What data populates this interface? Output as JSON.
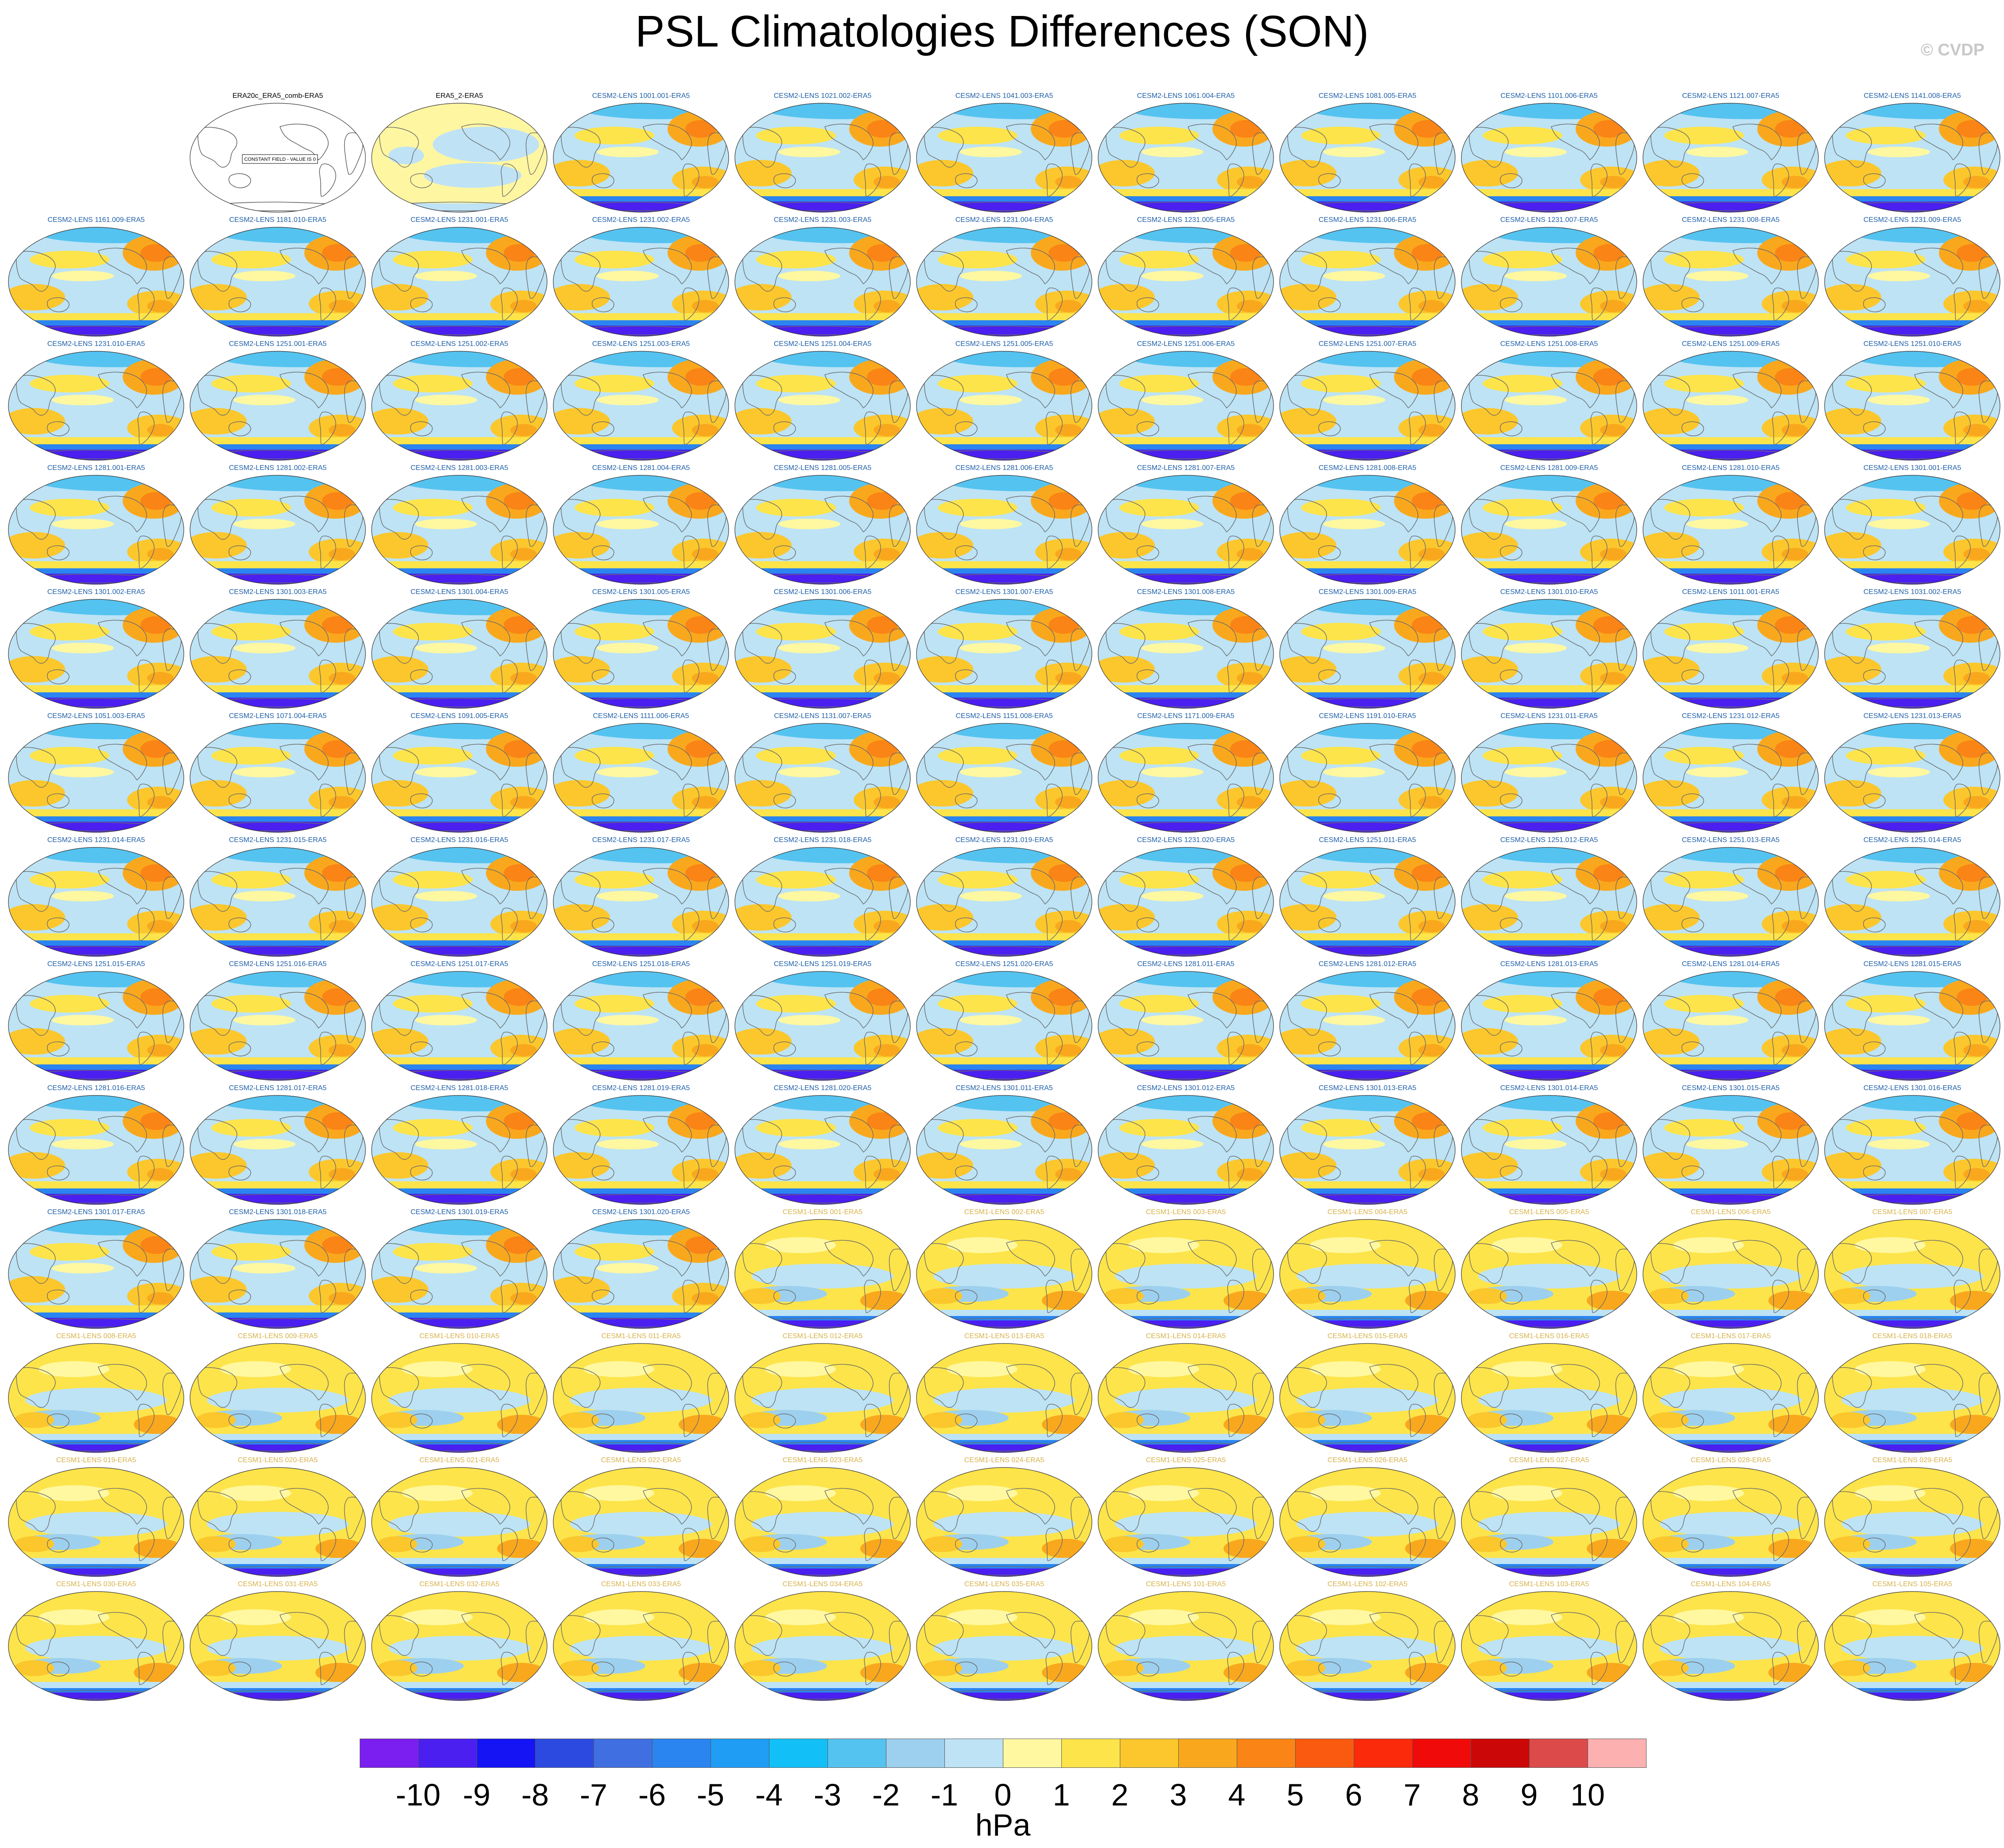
{
  "title": "PSL Climatologies Differences (SON)",
  "copyright": "© CVDP",
  "colorbar": {
    "units": "hPa",
    "tick_labels": [
      "-10",
      "-9",
      "-8",
      "-7",
      "-6",
      "-5",
      "-4",
      "-3",
      "-2",
      "-1",
      "0",
      "1",
      "2",
      "3",
      "4",
      "5",
      "6",
      "7",
      "8",
      "9",
      "10"
    ],
    "colors": [
      "#7a1ff0",
      "#4b1ff0",
      "#1414f5",
      "#2c4ae0",
      "#3f6fe0",
      "#2a85f0",
      "#1f9df5",
      "#12c0f7",
      "#55c3f0",
      "#9dd0ee",
      "#bde3f5",
      "#fff8a0",
      "#fde44a",
      "#fbc72c",
      "#f9a81d",
      "#fa8415",
      "#fa5a0f",
      "#fa2a0a",
      "#f00a0a",
      "#cc0707",
      "#dc4a4a",
      "#fdb0b0"
    ]
  },
  "panels": [
    "",
    "ERA20c_ERA5_comb-ERA5",
    "ERA5_2-ERA5",
    "CESM2-LENS 1001.001-ERA5",
    "CESM2-LENS 1021.002-ERA5",
    "CESM2-LENS 1041.003-ERA5",
    "CESM2-LENS 1061.004-ERA5",
    "CESM2-LENS 1081.005-ERA5",
    "CESM2-LENS 1101.006-ERA5",
    "CESM2-LENS 1121.007-ERA5",
    "CESM2-LENS 1141.008-ERA5",
    "CESM2-LENS 1161.009-ERA5",
    "CESM2-LENS 1181.010-ERA5",
    "CESM2-LENS 1231.001-ERA5",
    "CESM2-LENS 1231.002-ERA5",
    "CESM2-LENS 1231.003-ERA5",
    "CESM2-LENS 1231.004-ERA5",
    "CESM2-LENS 1231.005-ERA5",
    "CESM2-LENS 1231.006-ERA5",
    "CESM2-LENS 1231.007-ERA5",
    "CESM2-LENS 1231.008-ERA5",
    "CESM2-LENS 1231.009-ERA5",
    "CESM2-LENS 1231.010-ERA5",
    "CESM2-LENS 1251.001-ERA5",
    "CESM2-LENS 1251.002-ERA5",
    "CESM2-LENS 1251.003-ERA5",
    "CESM2-LENS 1251.004-ERA5",
    "CESM2-LENS 1251.005-ERA5",
    "CESM2-LENS 1251.006-ERA5",
    "CESM2-LENS 1251.007-ERA5",
    "CESM2-LENS 1251.008-ERA5",
    "CESM2-LENS 1251.009-ERA5",
    "CESM2-LENS 1251.010-ERA5",
    "CESM2-LENS 1281.001-ERA5",
    "CESM2-LENS 1281.002-ERA5",
    "CESM2-LENS 1281.003-ERA5",
    "CESM2-LENS 1281.004-ERA5",
    "CESM2-LENS 1281.005-ERA5",
    "CESM2-LENS 1281.006-ERA5",
    "CESM2-LENS 1281.007-ERA5",
    "CESM2-LENS 1281.008-ERA5",
    "CESM2-LENS 1281.009-ERA5",
    "CESM2-LENS 1281.010-ERA5",
    "CESM2-LENS 1301.001-ERA5",
    "CESM2-LENS 1301.002-ERA5",
    "CESM2-LENS 1301.003-ERA5",
    "CESM2-LENS 1301.004-ERA5",
    "CESM2-LENS 1301.005-ERA5",
    "CESM2-LENS 1301.006-ERA5",
    "CESM2-LENS 1301.007-ERA5",
    "CESM2-LENS 1301.008-ERA5",
    "CESM2-LENS 1301.009-ERA5",
    "CESM2-LENS 1301.010-ERA5",
    "CESM2-LENS 1011.001-ERA5",
    "CESM2-LENS 1031.002-ERA5",
    "CESM2-LENS 1051.003-ERA5",
    "CESM2-LENS 1071.004-ERA5",
    "CESM2-LENS 1091.005-ERA5",
    "CESM2-LENS 1111.006-ERA5",
    "CESM2-LENS 1131.007-ERA5",
    "CESM2-LENS 1151.008-ERA5",
    "CESM2-LENS 1171.009-ERA5",
    "CESM2-LENS 1191.010-ERA5",
    "CESM2-LENS 1231.011-ERA5",
    "CESM2-LENS 1231.012-ERA5",
    "CESM2-LENS 1231.013-ERA5",
    "CESM2-LENS 1231.014-ERA5",
    "CESM2-LENS 1231.015-ERA5",
    "CESM2-LENS 1231.016-ERA5",
    "CESM2-LENS 1231.017-ERA5",
    "CESM2-LENS 1231.018-ERA5",
    "CESM2-LENS 1231.019-ERA5",
    "CESM2-LENS 1231.020-ERA5",
    "CESM2-LENS 1251.011-ERA5",
    "CESM2-LENS 1251.012-ERA5",
    "CESM2-LENS 1251.013-ERA5",
    "CESM2-LENS 1251.014-ERA5",
    "CESM2-LENS 1251.015-ERA5",
    "CESM2-LENS 1251.016-ERA5",
    "CESM2-LENS 1251.017-ERA5",
    "CESM2-LENS 1251.018-ERA5",
    "CESM2-LENS 1251.019-ERA5",
    "CESM2-LENS 1251.020-ERA5",
    "CESM2-LENS 1281.011-ERA5",
    "CESM2-LENS 1281.012-ERA5",
    "CESM2-LENS 1281.013-ERA5",
    "CESM2-LENS 1281.014-ERA5",
    "CESM2-LENS 1281.015-ERA5",
    "CESM2-LENS 1281.016-ERA5",
    "CESM2-LENS 1281.017-ERA5",
    "CESM2-LENS 1281.018-ERA5",
    "CESM2-LENS 1281.019-ERA5",
    "CESM2-LENS 1281.020-ERA5",
    "CESM2-LENS 1301.011-ERA5",
    "CESM2-LENS 1301.012-ERA5",
    "CESM2-LENS 1301.013-ERA5",
    "CESM2-LENS 1301.014-ERA5",
    "CESM2-LENS 1301.015-ERA5",
    "CESM2-LENS 1301.016-ERA5",
    "CESM2-LENS 1301.017-ERA5",
    "CESM2-LENS 1301.018-ERA5",
    "CESM2-LENS 1301.019-ERA5",
    "CESM2-LENS 1301.020-ERA5",
    "CESM1-LENS 001-ERA5",
    "CESM1-LENS 002-ERA5",
    "CESM1-LENS 003-ERA5",
    "CESM1-LENS 004-ERA5",
    "CESM1-LENS 005-ERA5",
    "CESM1-LENS 006-ERA5",
    "CESM1-LENS 007-ERA5",
    "CESM1-LENS 008-ERA5",
    "CESM1-LENS 009-ERA5",
    "CESM1-LENS 010-ERA5",
    "CESM1-LENS 011-ERA5",
    "CESM1-LENS 012-ERA5",
    "CESM1-LENS 013-ERA5",
    "CESM1-LENS 014-ERA5",
    "CESM1-LENS 015-ERA5",
    "CESM1-LENS 016-ERA5",
    "CESM1-LENS 017-ERA5",
    "CESM1-LENS 018-ERA5",
    "CESM1-LENS 019-ERA5",
    "CESM1-LENS 020-ERA5",
    "CESM1-LENS 021-ERA5",
    "CESM1-LENS 022-ERA5",
    "CESM1-LENS 023-ERA5",
    "CESM1-LENS 024-ERA5",
    "CESM1-LENS 025-ERA5",
    "CESM1-LENS 026-ERA5",
    "CESM1-LENS 027-ERA5",
    "CESM1-LENS 028-ERA5",
    "CESM1-LENS 029-ERA5",
    "CESM1-LENS 030-ERA5",
    "CESM1-LENS 031-ERA5",
    "CESM1-LENS 032-ERA5",
    "CESM1-LENS 033-ERA5",
    "CESM1-LENS 034-ERA5",
    "CESM1-LENS 035-ERA5",
    "CESM1-LENS 101-ERA5",
    "CESM1-LENS 102-ERA5",
    "CESM1-LENS 103-ERA5",
    "CESM1-LENS 104-ERA5",
    "CESM1-LENS 105-ERA5"
  ],
  "constant_field_note": "CONSTANT FIELD - VALUE IS 0",
  "label_colors": {
    "observations": "#000000",
    "cesm2": "#1f5fa8",
    "cesm1": "#d8b24a"
  }
}
